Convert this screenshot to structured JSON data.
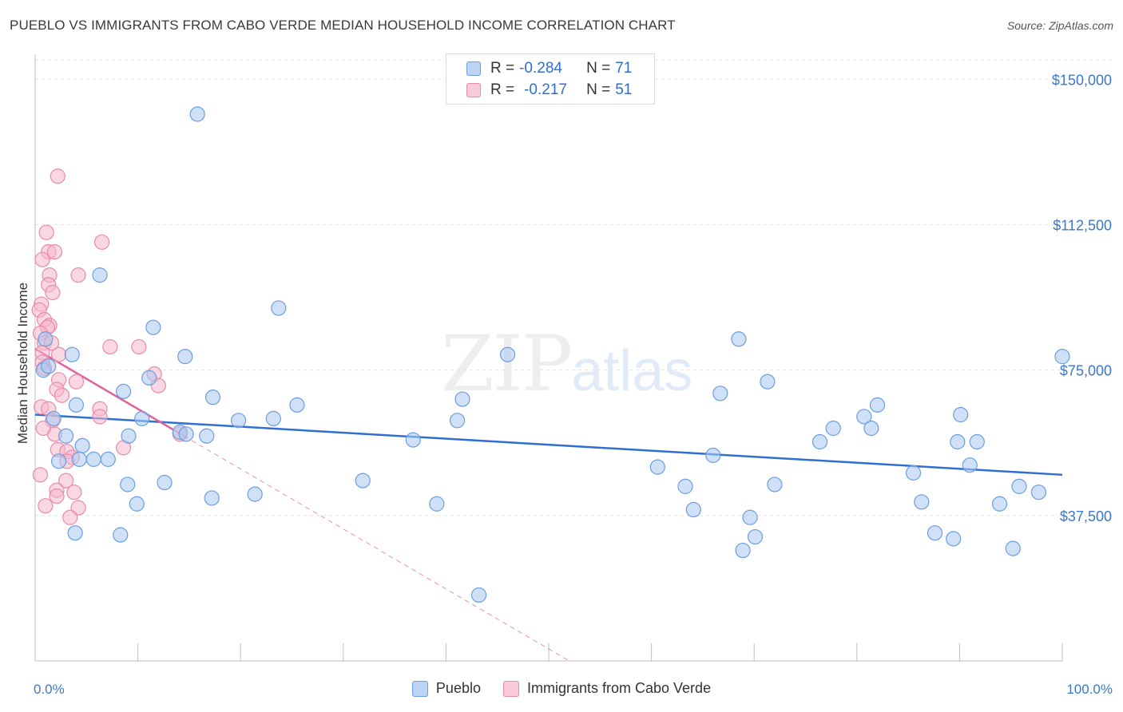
{
  "header": {
    "title": "PUEBLO VS IMMIGRANTS FROM CABO VERDE MEDIAN HOUSEHOLD INCOME CORRELATION CHART",
    "source": "Source: ZipAtlas.com"
  },
  "watermark": {
    "zip": "ZIP",
    "atlas": "atlas"
  },
  "legend_top": {
    "rows": [
      {
        "r_label": "R =",
        "r_value": "-0.284",
        "n_label": "N =",
        "n_value": "71"
      },
      {
        "r_label": "R =",
        "r_value": "-0.217",
        "n_label": "N =",
        "n_value": "51"
      }
    ]
  },
  "legend_bottom": {
    "items": [
      "Pueblo",
      "Immigrants from Cabo Verde"
    ]
  },
  "colors": {
    "blue_fill": "#a9c8f0",
    "blue_stroke": "#6a9ee0",
    "blue_line": "#2f6fd0",
    "pink_fill": "#f6b8cc",
    "pink_stroke": "#e88aa8",
    "pink_line": "#e0609a",
    "tick_text": "#3b78c9",
    "grid": "#e3e3e3"
  },
  "chart_data": {
    "type": "scatter",
    "title": "PUEBLO VS IMMIGRANTS FROM CABO VERDE MEDIAN HOUSEHOLD INCOME CORRELATION CHART",
    "xlabel": "",
    "ylabel": "Median Household Income",
    "xlim": [
      0,
      100
    ],
    "ylim": [
      0,
      155000
    ],
    "x_tick_labels": [
      "0.0%",
      "100.0%"
    ],
    "y_ticks": [
      37500,
      75000,
      112500,
      150000
    ],
    "y_tick_labels": [
      "$37,500",
      "$75,000",
      "$112,500",
      "$150,000"
    ],
    "grid": true,
    "legend": "top-center",
    "series": [
      {
        "name": "Pueblo",
        "points": [
          [
            15.8,
            141000
          ],
          [
            6.3,
            99500
          ],
          [
            23.7,
            91000
          ],
          [
            11.5,
            86000
          ],
          [
            14.6,
            78500
          ],
          [
            3.6,
            79000
          ],
          [
            46.0,
            79000
          ],
          [
            68.5,
            83000
          ],
          [
            100,
            78500
          ],
          [
            1.0,
            83000
          ],
          [
            0.8,
            75000
          ],
          [
            11.1,
            73000
          ],
          [
            8.6,
            69500
          ],
          [
            17.3,
            68000
          ],
          [
            4.0,
            66000
          ],
          [
            25.5,
            66000
          ],
          [
            41.6,
            67500
          ],
          [
            71.3,
            72000
          ],
          [
            66.7,
            69000
          ],
          [
            1.8,
            62500
          ],
          [
            10.4,
            62500
          ],
          [
            19.8,
            62000
          ],
          [
            23.2,
            62500
          ],
          [
            41.1,
            62000
          ],
          [
            82.0,
            66000
          ],
          [
            80.7,
            63000
          ],
          [
            90.1,
            63500
          ],
          [
            3.0,
            58000
          ],
          [
            9.1,
            58000
          ],
          [
            14.1,
            59000
          ],
          [
            14.7,
            58500
          ],
          [
            16.7,
            58000
          ],
          [
            36.8,
            57000
          ],
          [
            77.7,
            60000
          ],
          [
            81.4,
            60000
          ],
          [
            76.4,
            56500
          ],
          [
            89.8,
            56500
          ],
          [
            91.7,
            56500
          ],
          [
            4.6,
            55500
          ],
          [
            2.3,
            51500
          ],
          [
            4.3,
            52000
          ],
          [
            5.7,
            52000
          ],
          [
            7.1,
            52000
          ],
          [
            66.0,
            53000
          ],
          [
            60.6,
            50000
          ],
          [
            91.0,
            50500
          ],
          [
            85.5,
            48500
          ],
          [
            9.0,
            45500
          ],
          [
            12.6,
            46000
          ],
          [
            31.9,
            46500
          ],
          [
            63.3,
            45000
          ],
          [
            72.0,
            45500
          ],
          [
            95.8,
            45000
          ],
          [
            97.7,
            43500
          ],
          [
            9.9,
            40500
          ],
          [
            17.2,
            42000
          ],
          [
            21.4,
            43000
          ],
          [
            39.1,
            40500
          ],
          [
            64.1,
            39000
          ],
          [
            69.6,
            37000
          ],
          [
            86.3,
            41000
          ],
          [
            93.9,
            40500
          ],
          [
            3.9,
            33000
          ],
          [
            8.3,
            32500
          ],
          [
            70.1,
            32000
          ],
          [
            68.9,
            28500
          ],
          [
            87.6,
            33000
          ],
          [
            89.4,
            31500
          ],
          [
            95.2,
            29000
          ],
          [
            43.2,
            17000
          ],
          [
            1.3,
            76000
          ]
        ]
      },
      {
        "name": "Immigrants from Cabo Verde",
        "points": [
          [
            2.2,
            125000
          ],
          [
            1.1,
            110500
          ],
          [
            6.5,
            108000
          ],
          [
            1.3,
            105500
          ],
          [
            1.9,
            105500
          ],
          [
            0.7,
            103500
          ],
          [
            4.2,
            99500
          ],
          [
            1.4,
            99500
          ],
          [
            1.3,
            97000
          ],
          [
            1.7,
            95000
          ],
          [
            0.6,
            92000
          ],
          [
            0.4,
            90500
          ],
          [
            0.9,
            88000
          ],
          [
            1.4,
            86500
          ],
          [
            1.2,
            86000
          ],
          [
            0.5,
            84500
          ],
          [
            0.9,
            82000
          ],
          [
            7.3,
            81000
          ],
          [
            10.1,
            81000
          ],
          [
            0.7,
            79500
          ],
          [
            2.3,
            79000
          ],
          [
            0.7,
            77000
          ],
          [
            0.9,
            75500
          ],
          [
            11.6,
            74000
          ],
          [
            2.3,
            72500
          ],
          [
            4.0,
            72000
          ],
          [
            12.0,
            71000
          ],
          [
            2.1,
            70000
          ],
          [
            2.6,
            68500
          ],
          [
            0.6,
            65500
          ],
          [
            1.3,
            65000
          ],
          [
            6.3,
            65000
          ],
          [
            6.3,
            63000
          ],
          [
            1.7,
            62000
          ],
          [
            1.9,
            58500
          ],
          [
            8.6,
            55000
          ],
          [
            2.2,
            54500
          ],
          [
            3.1,
            54000
          ],
          [
            3.6,
            52500
          ],
          [
            3.1,
            51500
          ],
          [
            14.1,
            58500
          ],
          [
            3.0,
            46500
          ],
          [
            2.1,
            44000
          ],
          [
            2.1,
            42500
          ],
          [
            3.8,
            43500
          ],
          [
            4.2,
            39500
          ],
          [
            3.4,
            37000
          ],
          [
            1.0,
            40000
          ],
          [
            0.5,
            48000
          ],
          [
            1.6,
            82000
          ],
          [
            0.8,
            60000
          ]
        ]
      }
    ],
    "trend_lines": [
      {
        "series": "Pueblo",
        "from": [
          0,
          63500
        ],
        "to": [
          100,
          48000
        ],
        "style": "solid"
      },
      {
        "series": "Immigrants from Cabo Verde",
        "from": [
          0,
          80500
        ],
        "to": [
          14.5,
          58000
        ],
        "style": "solid"
      },
      {
        "series": "Immigrants from Cabo Verde",
        "from": [
          14.5,
          58000
        ],
        "to": [
          52,
          0
        ],
        "style": "dashed"
      }
    ]
  }
}
